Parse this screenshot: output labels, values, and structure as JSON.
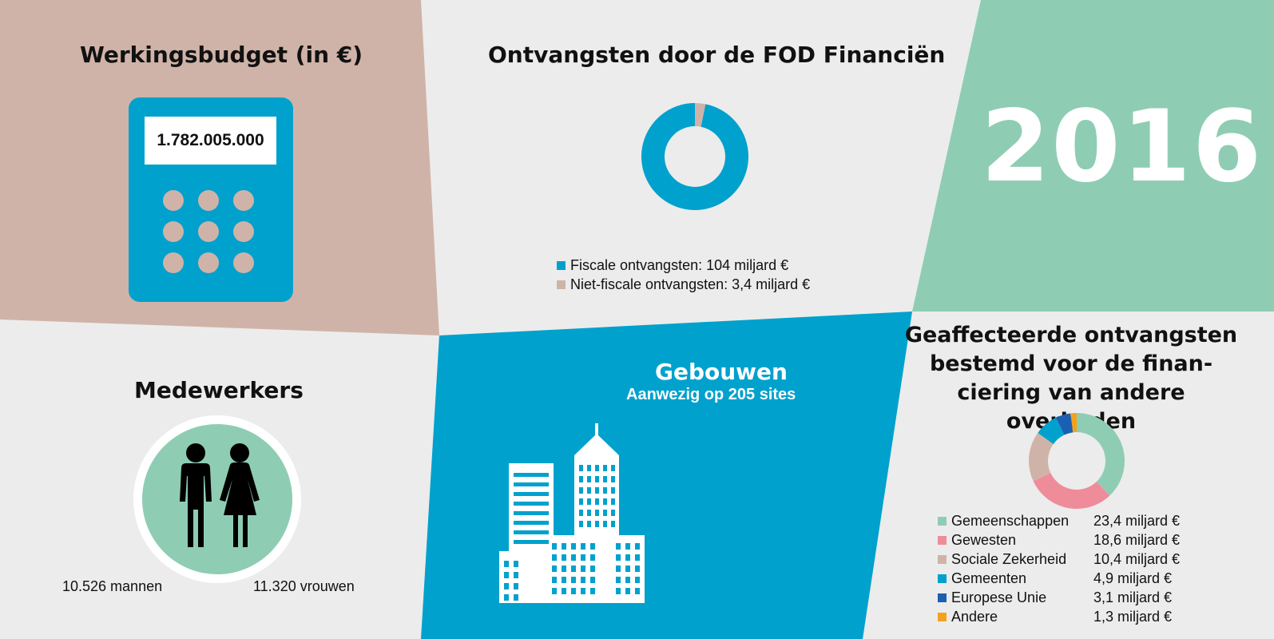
{
  "colors": {
    "tan": "#d0b3a8",
    "grey": "#ececec",
    "teal": "#8ecdb4",
    "blue": "#00a1cd",
    "pink": "#ef8c9a",
    "dark_blue": "#1a5fb4",
    "orange": "#f4a21d"
  },
  "budget": {
    "title": "Werkingsbudget (in €)",
    "amount": "1.782.005.000"
  },
  "revenue": {
    "title": "Ontvangsten door de FOD Financiën",
    "legend": [
      {
        "label": "Fiscale ontvangsten: 104 miljard €",
        "color": "#00a1cd",
        "value": 104
      },
      {
        "label": "Niet-fiscale ontvangsten: 3,4 miljard €",
        "color": "#d0b3a8",
        "value": 3.4
      }
    ]
  },
  "year": "2016",
  "staff": {
    "title": "Medewerkers",
    "men": "10.526 mannen",
    "women": "11.320 vrouwen",
    "icon": "people-icon"
  },
  "buildings": {
    "title": "Gebouwen",
    "subtitle": "Aanwezig op 205 sites",
    "icon": "buildings-icon"
  },
  "affected": {
    "title_lines": [
      "Geaffecteerde ontvangsten",
      "bestemd voor de finan-",
      "ciering van andere overheden"
    ],
    "items": [
      {
        "label": "Gemeenschappen",
        "amount": "23,4 miljard €",
        "value": 23.4,
        "color": "#8ecdb4"
      },
      {
        "label": "Gewesten",
        "amount": "18,6 miljard €",
        "value": 18.6,
        "color": "#ef8c9a"
      },
      {
        "label": "Sociale Zekerheid",
        "amount": "10,4 miljard €",
        "value": 10.4,
        "color": "#d0b3a8"
      },
      {
        "label": "Gemeenten",
        "amount": "4,9 miljard €",
        "value": 4.9,
        "color": "#00a1cd"
      },
      {
        "label": "Europese Unie",
        "amount": "3,1 miljard €",
        "value": 3.1,
        "color": "#1a5fb4"
      },
      {
        "label": "Andere",
        "amount": "1,3 miljard €",
        "value": 1.3,
        "color": "#f4a21d"
      }
    ]
  }
}
